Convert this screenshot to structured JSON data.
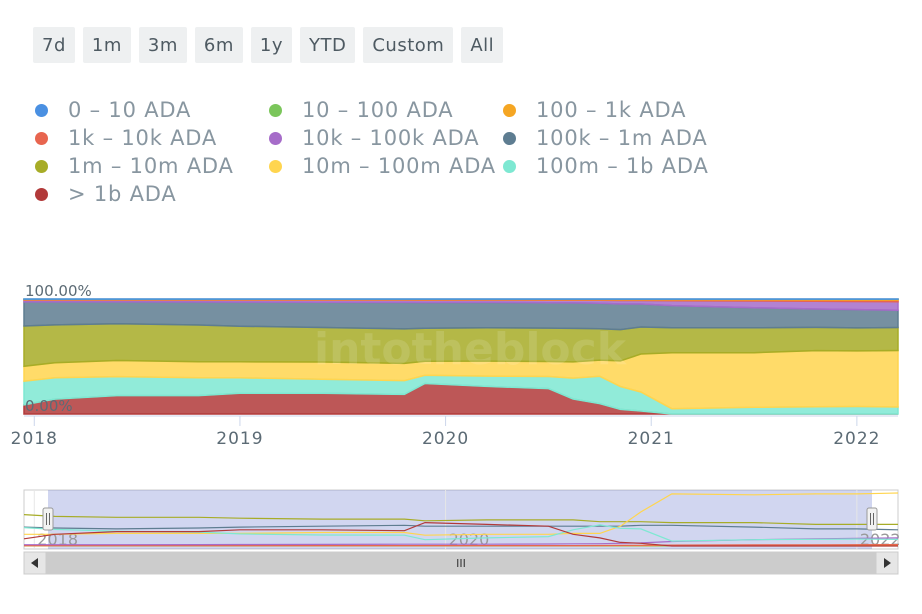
{
  "range_buttons": [
    "7d",
    "1m",
    "3m",
    "6m",
    "1y",
    "YTD",
    "Custom",
    "All"
  ],
  "legend": [
    {
      "label": "0 – 10 ADA",
      "color": "#4a90e2"
    },
    {
      "label": "10 – 100 ADA",
      "color": "#7bc65b"
    },
    {
      "label": "100 – 1k ADA",
      "color": "#f5a623"
    },
    {
      "label": "1k – 10k ADA",
      "color": "#e8654f"
    },
    {
      "label": "10k – 100k ADA",
      "color": "#a66cc9"
    },
    {
      "label": "100k – 1m ADA",
      "color": "#5e7d91"
    },
    {
      "label": "1m – 10m ADA",
      "color": "#a7ac27"
    },
    {
      "label": "10m – 100m ADA",
      "color": "#ffd54f"
    },
    {
      "label": "100m – 1b ADA",
      "color": "#7ee8d2"
    },
    {
      "label": "> 1b ADA",
      "color": "#b23a3a"
    }
  ],
  "chart_data": {
    "type": "area",
    "stacking": "percent",
    "ylabel_top": "100.00%",
    "ylabel_bottom": "0.00%",
    "watermark": "intotheblock",
    "x_ticks": [
      "2018",
      "2019",
      "2020",
      "2021",
      "2022"
    ],
    "xlim": [
      2017.95,
      2022.2
    ],
    "x": [
      2017.95,
      2018.1,
      2018.4,
      2018.8,
      2019.0,
      2019.4,
      2019.8,
      2019.9,
      2020.2,
      2020.5,
      2020.62,
      2020.75,
      2020.85,
      2020.95,
      2021.1,
      2021.5,
      2021.8,
      2022.0,
      2022.2
    ],
    "series": [
      {
        "name": "0 – 10 ADA",
        "values": [
          0.1,
          0.1,
          0.1,
          0.1,
          0.1,
          0.1,
          0.1,
          0.1,
          0.1,
          0.1,
          0.1,
          0.1,
          0.1,
          0.1,
          0.1,
          0.1,
          0.1,
          0.1,
          0.1
        ]
      },
      {
        "name": "10 – 100 ADA",
        "values": [
          0.1,
          0.1,
          0.1,
          0.1,
          0.1,
          0.1,
          0.1,
          0.1,
          0.1,
          0.1,
          0.1,
          0.1,
          0.1,
          0.1,
          0.1,
          0.1,
          0.1,
          0.1,
          0.1
        ]
      },
      {
        "name": "100 – 1k ADA",
        "values": [
          0.3,
          0.3,
          0.3,
          0.3,
          0.3,
          0.3,
          0.3,
          0.3,
          0.3,
          0.3,
          0.3,
          0.3,
          0.4,
          0.5,
          0.6,
          0.7,
          0.8,
          0.9,
          1.0
        ]
      },
      {
        "name": "1k – 10k ADA",
        "values": [
          0.5,
          0.5,
          0.5,
          0.5,
          0.5,
          0.5,
          0.5,
          0.5,
          0.5,
          0.5,
          0.5,
          0.6,
          0.7,
          0.8,
          1.0,
          1.2,
          1.3,
          1.5,
          1.6
        ]
      },
      {
        "name": "10k – 100k ADA",
        "values": [
          1.5,
          1.5,
          1.5,
          1.6,
          1.7,
          1.8,
          2.0,
          2.0,
          2.0,
          2.2,
          2.4,
          2.6,
          3.0,
          3.5,
          5.0,
          7.0,
          8.0,
          8.5,
          9.0
        ]
      },
      {
        "name": "100k – 1m ADA",
        "values": [
          21,
          20,
          19,
          20,
          21,
          22,
          23,
          22,
          22,
          22,
          22,
          22,
          22,
          23,
          23,
          21,
          19,
          19,
          18
        ]
      },
      {
        "name": "1m – 10m ADA",
        "values": [
          35,
          33,
          32,
          32,
          31,
          30,
          30,
          28,
          29,
          29,
          29,
          27,
          27,
          27,
          26,
          26,
          24,
          24,
          24
        ]
      },
      {
        "name": "10m – 100m ADA",
        "values": [
          13,
          13,
          14,
          14,
          14,
          15,
          15,
          12,
          13,
          13,
          14,
          14,
          22,
          38,
          58,
          57,
          58,
          58,
          59
        ]
      },
      {
        "name": "100m – 1b ADA",
        "values": [
          20.5,
          18.5,
          16.5,
          15.5,
          13.5,
          12.2,
          12.0,
          7.0,
          9.0,
          10.5,
          18.0,
          23.5,
          19.7,
          19.0,
          5.5,
          7.0,
          7.5,
          7.8,
          7.3
        ]
      },
      {
        "name": "> 1b ADA",
        "values": [
          8,
          13,
          16,
          16,
          18,
          18,
          17,
          26,
          24,
          22,
          13,
          9,
          4,
          3,
          0,
          0,
          0,
          0,
          0
        ]
      }
    ]
  },
  "navigator": {
    "x_ticks": [
      "2018",
      "2020",
      "2022"
    ],
    "scroll_grip": "III"
  }
}
